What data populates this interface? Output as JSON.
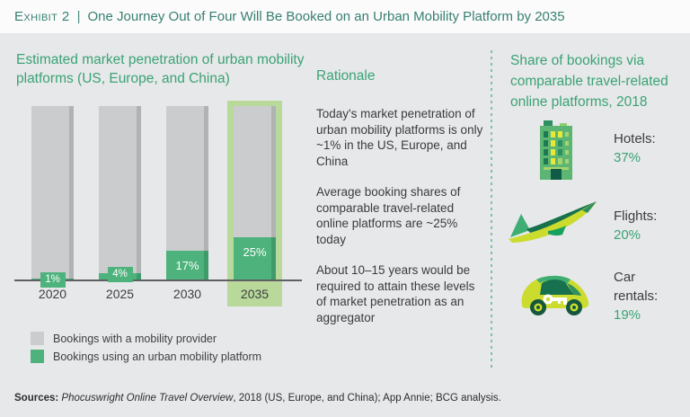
{
  "header": {
    "exhibit_label": "Exhibit 2",
    "separator": "|",
    "title": "One Journey Out of Four Will Be Booked on an Urban Mobility Platform by 2035"
  },
  "chart": {
    "title": "Estimated market penetration of urban mobility platforms (US, Europe, and China)",
    "legend": [
      {
        "label": "Bookings with a mobility provider",
        "color": "#cbccce"
      },
      {
        "label": "Bookings using an urban mobility platform",
        "color": "#4db27b"
      }
    ]
  },
  "chart_data": {
    "type": "bar",
    "stacked": true,
    "title": "Estimated market penetration of urban mobility platforms (US, Europe, and China)",
    "categories": [
      "2020",
      "2025",
      "2030",
      "2035"
    ],
    "series": [
      {
        "name": "Bookings using an urban mobility platform",
        "values": [
          1,
          4,
          17,
          25
        ],
        "color": "#4db27b"
      },
      {
        "name": "Bookings with a mobility provider",
        "values": [
          99,
          96,
          83,
          75
        ],
        "color": "#cbccce"
      }
    ],
    "value_labels": [
      "1%",
      "4%",
      "17%",
      "25%"
    ],
    "highlight_category": "2035",
    "highlight_color": "#b9d99b",
    "ylim": [
      0,
      100
    ],
    "legend_position": "bottom-left",
    "grid": false
  },
  "rationale": {
    "title": "Rationale",
    "paragraphs": [
      "Today's market penetration of urban mobility platforms is only ~1% in the US, Europe, and China",
      "Average booking shares of comparable travel-related online platforms are ~25% today",
      "About 10–15 years would be required to attain these levels of market penetration as an aggregator"
    ]
  },
  "share_panel": {
    "title": "Share of bookings via comparable travel-related online platforms, 2018",
    "items": [
      {
        "icon": "hotel-icon",
        "label": "Hotels:",
        "value": "37%"
      },
      {
        "icon": "plane-icon",
        "label": "Flights:",
        "value": "20%"
      },
      {
        "icon": "car-icon",
        "label": "Car rentals:",
        "value": "19%"
      }
    ]
  },
  "footer": {
    "sources_label": "Sources:",
    "source_italic": "Phocuswright Online Travel Overview",
    "source_rest": ", 2018 (US, Europe, and China); App Annie; BCG analysis."
  },
  "colors": {
    "accent_green": "#3aa376",
    "bar_green": "#4db27b",
    "bar_gray": "#cbccce",
    "highlight": "#b9d99b",
    "header_text": "#38806f",
    "body_text": "#3a3b3d"
  }
}
